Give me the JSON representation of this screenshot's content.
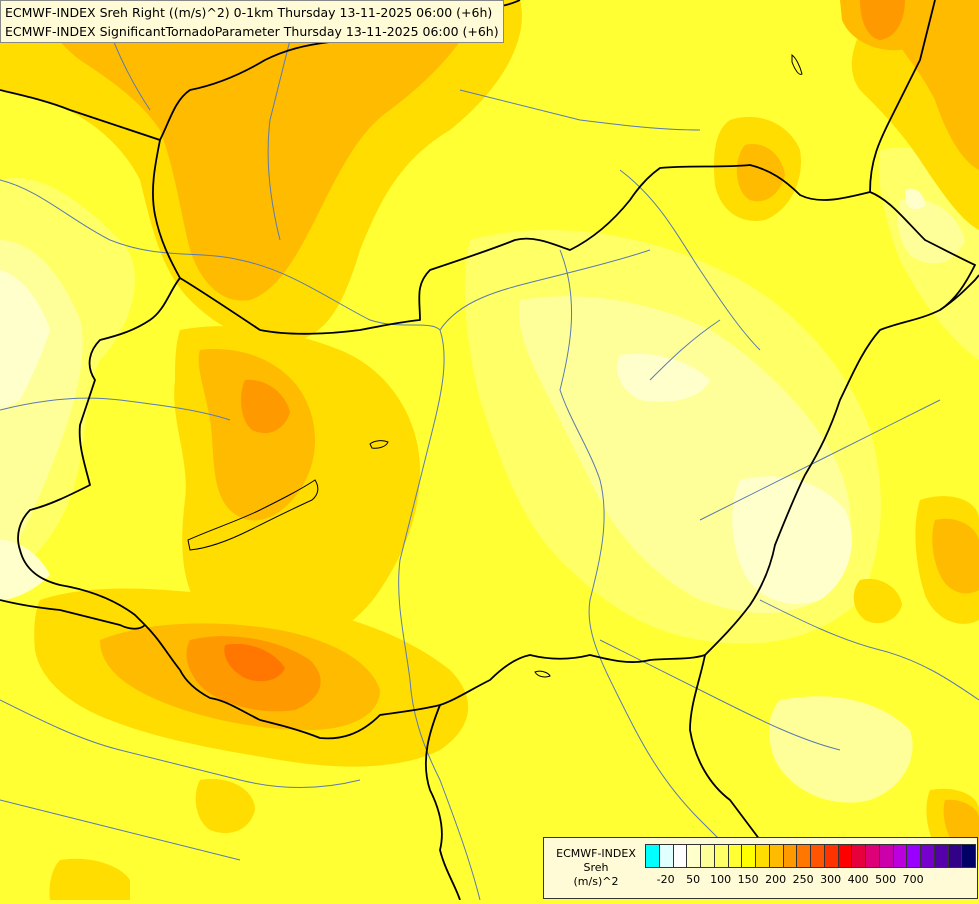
{
  "header": {
    "line1": "ECMWF-INDEX Sreh Right ((m/s)^2) 0-1km Thursday 13-11-2025 06:00 (+6h)",
    "line2": "ECMWF-INDEX SignificantTornadoParameter Thursday 13-11-2025 06:00 (+6h)"
  },
  "legend": {
    "title_line1": "ECMWF-INDEX",
    "title_line2": "Sreh",
    "title_line3": "(m/s)^2",
    "colors": [
      "#00ffff",
      "#e0ffff",
      "#ffffff",
      "#ffffcc",
      "#ffff99",
      "#ffff66",
      "#ffff33",
      "#ffff00",
      "#ffdd00",
      "#ffbb00",
      "#ff9900",
      "#ff7700",
      "#ff5500",
      "#ff3300",
      "#ff0000",
      "#e6003c",
      "#dd0077",
      "#cc00aa",
      "#bb00dd",
      "#9900ff",
      "#7700cc",
      "#5500aa",
      "#330088",
      "#000066"
    ],
    "ticks": [
      {
        "label": "-20",
        "index": 1
      },
      {
        "label": "50",
        "index": 3
      },
      {
        "label": "100",
        "index": 5
      },
      {
        "label": "150",
        "index": 7
      },
      {
        "label": "200",
        "index": 9
      },
      {
        "label": "250",
        "index": 11
      },
      {
        "label": "300",
        "index": 13
      },
      {
        "label": "400",
        "index": 15
      },
      {
        "label": "500",
        "index": 17
      },
      {
        "label": "700",
        "index": 19
      }
    ]
  },
  "colors": {
    "background": "#ffff33",
    "lighter": "#ffff66",
    "pale": "#ffff99",
    "palest": "#ffffcc",
    "yellow": "#ffdd00",
    "gold": "#ffbb00",
    "orange": "#ff9900",
    "deep_orange": "#ff7700",
    "border": "#000000",
    "river": "#5a7ab0"
  }
}
